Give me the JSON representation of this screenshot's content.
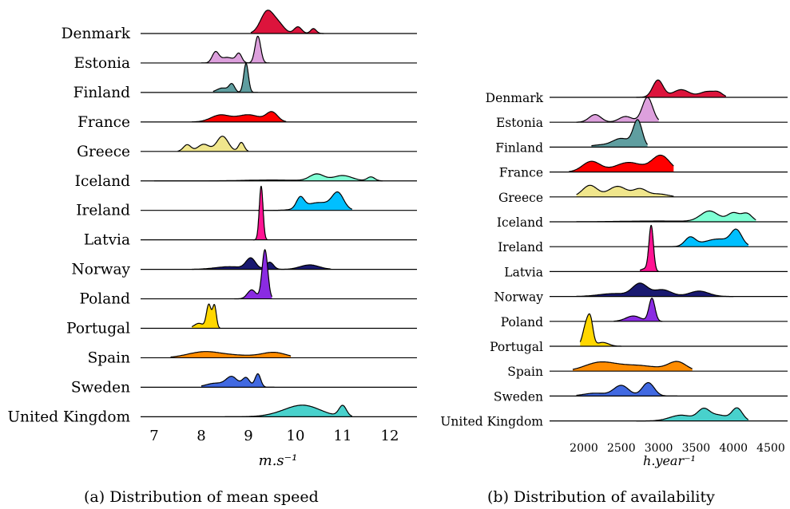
{
  "chart_data": [
    {
      "type": "ridgeline",
      "xlabel": "m.s⁻¹",
      "xlim": [
        6.7,
        12.55
      ],
      "xticks": [
        7,
        8,
        9,
        10,
        11,
        12
      ],
      "caption": "(a) Distribution of mean speed",
      "series": [
        {
          "name": "Denmark",
          "color": "#dc143c",
          "peaks": [
            [
              9.4,
              0.14,
              1.0
            ],
            [
              9.65,
              0.12,
              0.35
            ],
            [
              10.05,
              0.08,
              0.3
            ],
            [
              10.38,
              0.06,
              0.22
            ]
          ],
          "range": [
            9.05,
            10.6
          ]
        },
        {
          "name": "Estonia",
          "color": "#dda0dd",
          "peaks": [
            [
              8.3,
              0.07,
              0.45
            ],
            [
              8.8,
              0.06,
              0.38
            ],
            [
              9.2,
              0.06,
              1.2
            ],
            [
              8.55,
              0.15,
              0.25
            ]
          ],
          "range": [
            8.0,
            9.45
          ]
        },
        {
          "name": "Finland",
          "color": "#5f9ea0",
          "peaks": [
            [
              8.65,
              0.06,
              0.35
            ],
            [
              8.95,
              0.05,
              1.3
            ],
            [
              8.45,
              0.12,
              0.2
            ]
          ],
          "range": [
            8.25,
            9.2
          ]
        },
        {
          "name": "France",
          "color": "#ff0000",
          "peaks": [
            [
              8.4,
              0.2,
              0.3
            ],
            [
              9.0,
              0.25,
              0.32
            ],
            [
              9.5,
              0.12,
              0.42
            ]
          ],
          "range": [
            7.8,
            9.8
          ]
        },
        {
          "name": "Greece",
          "color": "#f0e68c",
          "peaks": [
            [
              7.7,
              0.08,
              0.3
            ],
            [
              8.05,
              0.12,
              0.32
            ],
            [
              8.45,
              0.12,
              0.68
            ],
            [
              8.85,
              0.06,
              0.4
            ]
          ],
          "range": [
            7.5,
            9.0
          ]
        },
        {
          "name": "Iceland",
          "color": "#7fffd4",
          "peaks": [
            [
              10.45,
              0.15,
              0.3
            ],
            [
              11.0,
              0.2,
              0.24
            ],
            [
              11.6,
              0.08,
              0.18
            ],
            [
              9.5,
              0.6,
              0.04
            ]
          ],
          "range": [
            7.0,
            11.85
          ]
        },
        {
          "name": "Ireland",
          "color": "#00bfff",
          "peaks": [
            [
              10.1,
              0.08,
              0.48
            ],
            [
              10.5,
              0.3,
              0.35
            ],
            [
              10.9,
              0.12,
              0.68
            ]
          ],
          "range": [
            9.2,
            11.2
          ]
        },
        {
          "name": "Latvia",
          "color": "#ff1493",
          "peaks": [
            [
              9.27,
              0.04,
              2.4
            ]
          ],
          "range": [
            9.1,
            9.4
          ]
        },
        {
          "name": "Norway",
          "color": "#191970",
          "peaks": [
            [
              9.05,
              0.1,
              0.48
            ],
            [
              9.45,
              0.08,
              0.32
            ],
            [
              10.3,
              0.2,
              0.2
            ],
            [
              8.6,
              0.3,
              0.12
            ]
          ],
          "range": [
            7.8,
            10.75
          ]
        },
        {
          "name": "Poland",
          "color": "#8a2be2",
          "peaks": [
            [
              9.07,
              0.09,
              0.4
            ],
            [
              9.35,
              0.06,
              2.2
            ]
          ],
          "range": [
            8.7,
            9.5
          ]
        },
        {
          "name": "Portugal",
          "color": "#ffd700",
          "peaks": [
            [
              8.16,
              0.05,
              1.05
            ],
            [
              8.28,
              0.04,
              1.0
            ],
            [
              7.95,
              0.1,
              0.22
            ]
          ],
          "range": [
            7.8,
            8.4
          ]
        },
        {
          "name": "Spain",
          "color": "#ff8c00",
          "peaks": [
            [
              8.05,
              0.35,
              0.25
            ],
            [
              9.55,
              0.25,
              0.22
            ],
            [
              8.8,
              0.45,
              0.1
            ]
          ],
          "range": [
            7.35,
            9.9
          ]
        },
        {
          "name": "Sweden",
          "color": "#4169e1",
          "peaks": [
            [
              8.65,
              0.12,
              0.45
            ],
            [
              8.95,
              0.08,
              0.42
            ],
            [
              9.2,
              0.06,
              0.6
            ],
            [
              8.3,
              0.2,
              0.18
            ]
          ],
          "range": [
            8.0,
            9.55
          ]
        },
        {
          "name": "United Kingdom",
          "color": "#48d1cc",
          "peaks": [
            [
              10.2,
              0.35,
              0.45
            ],
            [
              11.0,
              0.08,
              0.48
            ],
            [
              9.8,
              0.35,
              0.12
            ]
          ],
          "range": [
            8.5,
            11.2
          ]
        }
      ]
    },
    {
      "type": "ridgeline",
      "xlabel": "h.year⁻¹",
      "xlim": [
        1700,
        4700
      ],
      "xticks": [
        2000,
        2500,
        3000,
        3500,
        4000,
        4500
      ],
      "caption": "(b) Distribution of availability",
      "series": [
        {
          "name": "Denmark",
          "color": "#dc143c",
          "peaks": [
            [
              2990,
              70,
              0.9
            ],
            [
              3300,
              110,
              0.4
            ],
            [
              3650,
              100,
              0.3
            ],
            [
              3800,
              60,
              0.2
            ]
          ],
          "range": [
            2700,
            3900
          ]
        },
        {
          "name": "Estonia",
          "color": "#dda0dd",
          "peaks": [
            [
              2150,
              80,
              0.4
            ],
            [
              2560,
              90,
              0.3
            ],
            [
              2850,
              70,
              1.3
            ]
          ],
          "range": [
            1900,
            3000
          ]
        },
        {
          "name": "Finland",
          "color": "#5f9ea0",
          "peaks": [
            [
              2500,
              120,
              0.45
            ],
            [
              2720,
              60,
              1.35
            ],
            [
              2200,
              120,
              0.1
            ]
          ],
          "range": [
            2100,
            2850
          ]
        },
        {
          "name": "France",
          "color": "#ff0000",
          "peaks": [
            [
              2100,
              120,
              0.55
            ],
            [
              2600,
              180,
              0.5
            ],
            [
              3030,
              120,
              0.85
            ]
          ],
          "range": [
            1800,
            3200
          ]
        },
        {
          "name": "Greece",
          "color": "#f0e68c",
          "peaks": [
            [
              2080,
              100,
              0.6
            ],
            [
              2450,
              120,
              0.55
            ],
            [
              2750,
              90,
              0.4
            ],
            [
              3000,
              120,
              0.15
            ]
          ],
          "range": [
            1900,
            3200
          ]
        },
        {
          "name": "Iceland",
          "color": "#7fffd4",
          "peaks": [
            [
              3680,
              120,
              0.55
            ],
            [
              4000,
              80,
              0.45
            ],
            [
              4180,
              70,
              0.42
            ],
            [
              3000,
              500,
              0.04
            ]
          ],
          "range": [
            1900,
            4300
          ]
        },
        {
          "name": "Ireland",
          "color": "#00bfff",
          "peaks": [
            [
              3420,
              70,
              0.45
            ],
            [
              3800,
              200,
              0.4
            ],
            [
              4040,
              70,
              0.72
            ]
          ],
          "range": [
            2900,
            4200
          ]
        },
        {
          "name": "Latvia",
          "color": "#ff1493",
          "peaks": [
            [
              2900,
              30,
              2.35
            ],
            [
              2820,
              60,
              0.15
            ]
          ],
          "range": [
            2750,
            3000
          ]
        },
        {
          "name": "Norway",
          "color": "#191970",
          "peaks": [
            [
              2750,
              100,
              0.65
            ],
            [
              3050,
              120,
              0.35
            ],
            [
              3540,
              130,
              0.28
            ],
            [
              2400,
              200,
              0.15
            ]
          ],
          "range": [
            1900,
            4000
          ]
        },
        {
          "name": "Poland",
          "color": "#8a2be2",
          "peaks": [
            [
              2660,
              100,
              0.28
            ],
            [
              2910,
              40,
              1.2
            ]
          ],
          "range": [
            2400,
            3050
          ]
        },
        {
          "name": "Portugal",
          "color": "#ffd700",
          "peaks": [
            [
              2030,
              45,
              1.1
            ],
            [
              2090,
              35,
              1.1
            ],
            [
              2250,
              80,
              0.2
            ]
          ],
          "range": [
            1950,
            2500
          ]
        },
        {
          "name": "Spain",
          "color": "#ff8c00",
          "peaks": [
            [
              2200,
              200,
              0.4
            ],
            [
              3250,
              120,
              0.45
            ],
            [
              2700,
              300,
              0.3
            ]
          ],
          "range": [
            1850,
            3450
          ]
        },
        {
          "name": "Sweden",
          "color": "#4169e1",
          "peaks": [
            [
              2500,
              100,
              0.55
            ],
            [
              2860,
              80,
              0.7
            ],
            [
              2150,
              150,
              0.15
            ]
          ],
          "range": [
            1900,
            3250
          ]
        },
        {
          "name": "United Kingdom",
          "color": "#48d1cc",
          "peaks": [
            [
              3300,
              150,
              0.3
            ],
            [
              3600,
              80,
              0.55
            ],
            [
              4050,
              70,
              0.65
            ],
            [
              3800,
              120,
              0.3
            ]
          ],
          "range": [
            2700,
            4200
          ]
        }
      ]
    }
  ]
}
